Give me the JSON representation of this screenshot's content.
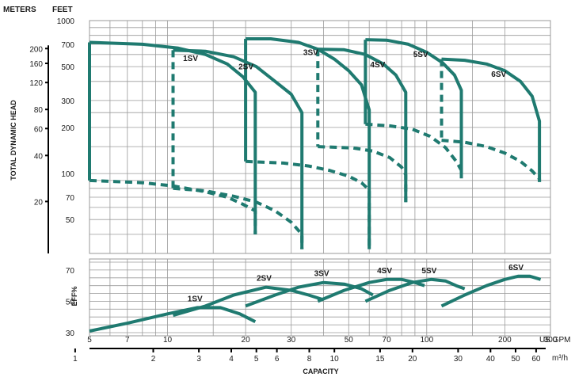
{
  "chart_data": {
    "type": "line",
    "title": "",
    "labels": {
      "meters": "METERS",
      "feet": "FEET",
      "ylabel_head": "TOTAL DYNAMIC HEAD",
      "ylabel_eff": "EFF%",
      "xlabel": "CAPACITY",
      "gpm_unit": "US GPM",
      "m3h_unit": "m³/h"
    },
    "axes": {
      "gpm_range": [
        5,
        300
      ],
      "gpm_ticks": [
        5,
        7,
        10,
        20,
        30,
        50,
        70,
        100,
        200,
        300
      ],
      "m3h_ticks": [
        1,
        2,
        3,
        4,
        5,
        6,
        8,
        10,
        15,
        20,
        30,
        40,
        50,
        60
      ],
      "feet_range": [
        30,
        1000
      ],
      "feet_ticks": [
        1000,
        700,
        500,
        300,
        200,
        100,
        70,
        50
      ],
      "meters_ticks": [
        200,
        160,
        120,
        80,
        60,
        40,
        20
      ],
      "eff_range": [
        30,
        75
      ],
      "eff_ticks": [
        70,
        50,
        30
      ],
      "scale": "log-log",
      "grid": true
    },
    "colors": {
      "curve": "#1f7a70",
      "grid": "#9a9a9a",
      "axis": "#000000"
    },
    "series": [
      {
        "name": "1SV",
        "max_curve": [
          [
            5.0,
            720
          ],
          [
            8,
            700
          ],
          [
            11,
            660
          ],
          [
            14,
            600
          ],
          [
            17,
            520
          ],
          [
            19.5,
            430
          ],
          [
            21.8,
            340
          ],
          [
            21.8,
            40
          ]
        ],
        "min_curve": [
          [
            5.0,
            90
          ],
          [
            8,
            87
          ],
          [
            10.5,
            83
          ],
          [
            14,
            76
          ],
          [
            17,
            70
          ],
          [
            19.5,
            63
          ],
          [
            21.8,
            57
          ],
          [
            21.8,
            40
          ]
        ],
        "left_edge": [
          [
            5.0,
            720
          ],
          [
            5.0,
            90
          ]
        ],
        "trim_link": [
          [
            10.5,
            640
          ],
          [
            10.5,
            80
          ]
        ],
        "efficiency": [
          [
            5.0,
            31
          ],
          [
            7,
            36
          ],
          [
            10,
            42
          ],
          [
            13,
            46
          ],
          [
            16,
            46
          ],
          [
            19,
            42
          ],
          [
            21.8,
            37
          ]
        ]
      },
      {
        "name": "2SV",
        "max_curve": [
          [
            10.5,
            640
          ],
          [
            14,
            630
          ],
          [
            18,
            580
          ],
          [
            22,
            500
          ],
          [
            26,
            400
          ],
          [
            30,
            330
          ],
          [
            33,
            250
          ],
          [
            33,
            32
          ]
        ],
        "min_curve": [
          [
            10.5,
            80
          ],
          [
            14,
            77
          ],
          [
            18,
            71
          ],
          [
            22,
            65
          ],
          [
            26,
            57
          ],
          [
            30,
            48
          ],
          [
            33,
            40
          ],
          [
            33,
            32
          ]
        ],
        "efficiency": [
          [
            10.5,
            41
          ],
          [
            14,
            47
          ],
          [
            18,
            54
          ],
          [
            24,
            59
          ],
          [
            30,
            57
          ],
          [
            35,
            54
          ],
          [
            40,
            51
          ]
        ]
      },
      {
        "name": "3SV",
        "max_curve": [
          [
            20,
            760
          ],
          [
            25,
            760
          ],
          [
            32,
            720
          ],
          [
            38,
            650
          ],
          [
            44,
            560
          ],
          [
            50,
            470
          ],
          [
            56,
            380
          ],
          [
            60,
            260
          ],
          [
            60,
            32
          ]
        ],
        "min_curve": [
          [
            20,
            120
          ],
          [
            28,
            117
          ],
          [
            35,
            112
          ],
          [
            42,
            105
          ],
          [
            50,
            96
          ],
          [
            56,
            87
          ],
          [
            60,
            78
          ],
          [
            60,
            32
          ]
        ],
        "left_edge": [
          [
            20,
            760
          ],
          [
            20,
            120
          ]
        ],
        "trim_link": [
          [
            38,
            650
          ],
          [
            38,
            150
          ]
        ],
        "efficiency": [
          [
            20,
            47
          ],
          [
            26,
            54
          ],
          [
            32,
            59
          ],
          [
            40,
            62
          ],
          [
            48,
            61
          ],
          [
            56,
            58
          ],
          [
            62,
            54
          ]
        ]
      },
      {
        "name": "4SV",
        "max_curve": [
          [
            38,
            650
          ],
          [
            48,
            645
          ],
          [
            58,
            600
          ],
          [
            68,
            520
          ],
          [
            76,
            440
          ],
          [
            83,
            340
          ],
          [
            83,
            65
          ]
        ],
        "min_curve": [
          [
            38,
            150
          ],
          [
            52,
            147
          ],
          [
            62,
            140
          ],
          [
            72,
            127
          ],
          [
            80,
            110
          ],
          [
            83,
            98
          ],
          [
            83,
            65
          ]
        ],
        "efficiency": [
          [
            38,
            50
          ],
          [
            48,
            57
          ],
          [
            60,
            62
          ],
          [
            70,
            64
          ],
          [
            80,
            64
          ],
          [
            90,
            62
          ],
          [
            98,
            60
          ]
        ]
      },
      {
        "name": "5SV",
        "max_curve": [
          [
            58,
            750
          ],
          [
            70,
            745
          ],
          [
            85,
            700
          ],
          [
            100,
            620
          ],
          [
            115,
            530
          ],
          [
            128,
            440
          ],
          [
            136,
            350
          ],
          [
            136,
            93
          ]
        ],
        "min_curve": [
          [
            58,
            210
          ],
          [
            72,
            205
          ],
          [
            88,
            195
          ],
          [
            103,
            175
          ],
          [
            118,
            148
          ],
          [
            130,
            120
          ],
          [
            136,
            105
          ],
          [
            136,
            93
          ]
        ],
        "left_edge": [
          [
            58,
            750
          ],
          [
            58,
            210
          ]
        ],
        "trim_link": [
          [
            114,
            560
          ],
          [
            114,
            165
          ]
        ],
        "efficiency": [
          [
            58,
            50
          ],
          [
            72,
            57
          ],
          [
            88,
            62
          ],
          [
            104,
            64
          ],
          [
            118,
            63
          ],
          [
            130,
            60
          ],
          [
            140,
            58
          ]
        ]
      },
      {
        "name": "6SV",
        "max_curve": [
          [
            114,
            560
          ],
          [
            140,
            550
          ],
          [
            170,
            520
          ],
          [
            200,
            470
          ],
          [
            230,
            400
          ],
          [
            255,
            320
          ],
          [
            272,
            220
          ],
          [
            272,
            88
          ]
        ],
        "min_curve": [
          [
            114,
            165
          ],
          [
            140,
            160
          ],
          [
            170,
            150
          ],
          [
            200,
            136
          ],
          [
            230,
            120
          ],
          [
            255,
            104
          ],
          [
            272,
            92
          ],
          [
            272,
            88
          ]
        ],
        "efficiency": [
          [
            114,
            47
          ],
          [
            140,
            54
          ],
          [
            170,
            60
          ],
          [
            200,
            64
          ],
          [
            225,
            66
          ],
          [
            250,
            66
          ],
          [
            275,
            64
          ]
        ]
      }
    ]
  }
}
